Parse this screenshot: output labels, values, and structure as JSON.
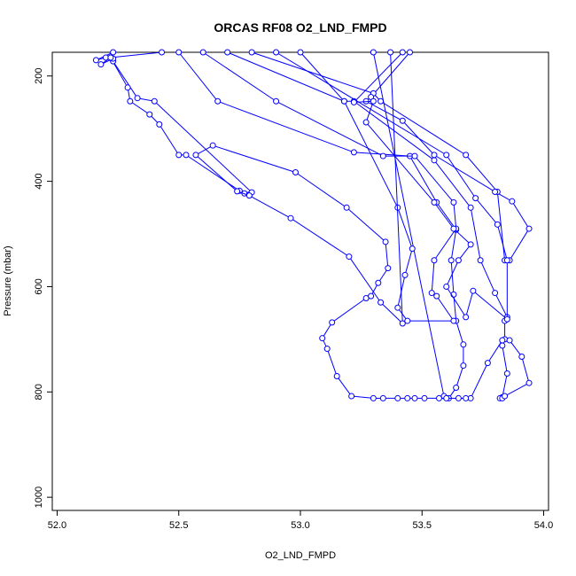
{
  "chart_data": {
    "type": "line",
    "title": "ORCAS RF08 O2_LND_FMPD",
    "xlabel": "O2_LND_FMPD",
    "ylabel": "Pressure (mbar)",
    "xlim": [
      51.98,
      54.02
    ],
    "ylim": [
      1025,
      155
    ],
    "y_reversed": true,
    "grid": false,
    "legend": "none",
    "color": "#0000ff",
    "marker": "open-circle",
    "x_ticks": [
      {
        "value": 52.0,
        "label": "52.0"
      },
      {
        "value": 52.5,
        "label": "52.5"
      },
      {
        "value": 53.0,
        "label": "53.0"
      },
      {
        "value": 53.5,
        "label": "53.5"
      },
      {
        "value": 54.0,
        "label": "54.0"
      }
    ],
    "y_ticks": [
      {
        "value": 200,
        "label": "200"
      },
      {
        "value": 400,
        "label": "400"
      },
      {
        "value": 600,
        "label": "600"
      },
      {
        "value": 800,
        "label": "800"
      },
      {
        "value": 1000,
        "label": "1000"
      }
    ],
    "series": [
      {
        "points": [
          [
            52.23,
            155
          ],
          [
            52.16,
            170
          ],
          [
            52.2,
            165
          ],
          [
            52.22,
            165
          ],
          [
            52.29,
            222
          ],
          [
            52.3,
            248
          ],
          [
            52.38,
            273
          ],
          [
            52.42,
            292
          ],
          [
            52.5,
            350
          ],
          [
            52.53,
            350
          ],
          [
            52.75,
            418
          ],
          [
            52.77,
            423
          ],
          [
            52.79,
            425
          ],
          [
            52.8,
            421
          ],
          [
            52.4,
            248
          ],
          [
            52.33,
            242
          ],
          [
            52.23,
            172
          ],
          [
            52.23,
            167
          ],
          [
            52.18,
            178
          ],
          [
            52.22,
            165
          ],
          [
            52.43,
            155
          ]
        ]
      },
      {
        "points": [
          [
            52.5,
            155
          ],
          [
            52.66,
            248
          ],
          [
            53.22,
            345
          ],
          [
            53.45,
            352
          ],
          [
            53.56,
            440
          ],
          [
            53.64,
            492
          ],
          [
            53.62,
            550
          ],
          [
            53.63,
            615
          ],
          [
            53.64,
            665
          ],
          [
            53.67,
            710
          ],
          [
            53.67,
            750
          ],
          [
            53.64,
            792
          ],
          [
            53.61,
            812
          ],
          [
            53.59,
            808
          ],
          [
            53.3,
            155
          ]
        ]
      },
      {
        "points": [
          [
            52.6,
            155
          ],
          [
            52.9,
            248
          ],
          [
            53.34,
            352
          ],
          [
            53.47,
            352
          ],
          [
            53.63,
            440
          ],
          [
            53.64,
            490
          ],
          [
            53.55,
            550
          ],
          [
            53.54,
            612
          ],
          [
            53.56,
            618
          ],
          [
            53.63,
            665
          ],
          [
            53.44,
            665
          ],
          [
            53.4,
            640
          ],
          [
            53.43,
            578
          ],
          [
            53.46,
            528
          ],
          [
            53.4,
            450
          ],
          [
            53.18,
            248
          ],
          [
            53.0,
            155
          ]
        ]
      },
      {
        "points": [
          [
            52.7,
            155
          ],
          [
            53.18,
            248
          ],
          [
            53.22,
            248
          ],
          [
            53.55,
            360
          ],
          [
            53.7,
            450
          ],
          [
            53.74,
            550
          ],
          [
            53.8,
            612
          ],
          [
            53.85,
            658
          ],
          [
            53.84,
            665
          ],
          [
            53.84,
            700
          ],
          [
            53.83,
            712
          ],
          [
            53.85,
            765
          ],
          [
            53.83,
            810
          ],
          [
            53.82,
            812
          ],
          [
            53.83,
            812
          ],
          [
            53.84,
            808
          ],
          [
            53.94,
            783
          ],
          [
            53.91,
            733
          ],
          [
            53.86,
            702
          ],
          [
            53.83,
            702
          ],
          [
            53.77,
            745
          ],
          [
            53.7,
            812
          ],
          [
            53.68,
            812
          ],
          [
            53.65,
            812
          ],
          [
            53.6,
            812
          ],
          [
            53.57,
            812
          ],
          [
            53.51,
            812
          ],
          [
            53.47,
            812
          ],
          [
            53.44,
            812
          ],
          [
            53.4,
            812
          ],
          [
            53.34,
            812
          ],
          [
            53.3,
            812
          ],
          [
            53.21,
            808
          ],
          [
            53.15,
            770
          ],
          [
            53.11,
            718
          ],
          [
            53.09,
            698
          ],
          [
            53.13,
            668
          ],
          [
            53.27,
            622
          ],
          [
            53.29,
            618
          ],
          [
            53.32,
            593
          ],
          [
            53.36,
            565
          ],
          [
            53.35,
            515
          ],
          [
            53.19,
            450
          ],
          [
            52.98,
            383
          ],
          [
            52.64,
            332
          ],
          [
            52.57,
            350
          ],
          [
            52.74,
            419
          ],
          [
            52.79,
            427
          ],
          [
            52.96,
            470
          ],
          [
            53.2,
            543
          ],
          [
            53.33,
            630
          ],
          [
            53.42,
            670
          ],
          [
            53.37,
            155
          ]
        ]
      },
      {
        "points": [
          [
            52.8,
            155
          ],
          [
            53.3,
            233
          ],
          [
            53.33,
            248
          ],
          [
            53.68,
            350
          ],
          [
            53.81,
            420
          ],
          [
            53.84,
            550
          ],
          [
            53.86,
            550
          ],
          [
            53.94,
            490
          ],
          [
            53.87,
            438
          ],
          [
            53.8,
            420
          ],
          [
            53.55,
            350
          ],
          [
            53.42,
            285
          ],
          [
            53.27,
            248
          ],
          [
            53.29,
            240
          ],
          [
            53.45,
            155
          ]
        ]
      },
      {
        "points": [
          [
            52.9,
            155
          ],
          [
            53.6,
            350
          ],
          [
            53.72,
            432
          ],
          [
            53.81,
            482
          ],
          [
            53.85,
            550
          ],
          [
            53.85,
            662
          ],
          [
            53.71,
            608
          ],
          [
            53.68,
            658
          ],
          [
            53.6,
            600
          ],
          [
            53.65,
            550
          ],
          [
            53.7,
            520
          ],
          [
            53.63,
            490
          ],
          [
            53.55,
            440
          ],
          [
            53.27,
            288
          ],
          [
            53.3,
            248
          ],
          [
            53.22,
            250
          ],
          [
            53.42,
            155
          ]
        ]
      }
    ]
  }
}
